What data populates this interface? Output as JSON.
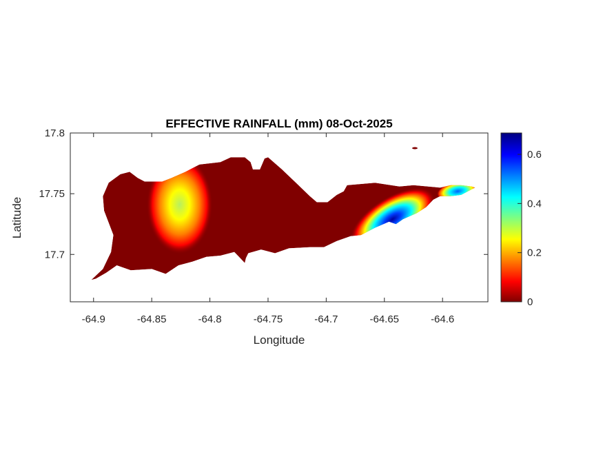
{
  "chart_data": {
    "type": "heatmap",
    "title": "EFFECTIVE RAINFALL (mm) 08-Oct-2025",
    "xlabel": "Longitude",
    "ylabel": "Latitude",
    "xlim": [
      -64.92,
      -64.561
    ],
    "ylim": [
      17.661,
      17.8
    ],
    "xticks": [
      -64.9,
      -64.85,
      -64.8,
      -64.75,
      -64.7,
      -64.65,
      -64.6
    ],
    "xtick_labels": [
      "-64.9",
      "-64.85",
      "-64.8",
      "-64.75",
      "-64.7",
      "-64.65",
      "-64.6"
    ],
    "yticks": [
      17.7,
      17.75,
      17.8
    ],
    "ytick_labels": [
      "17.7",
      "17.75",
      "17.8"
    ],
    "colorbar": {
      "range": [
        0,
        0.687
      ],
      "ticks": [
        0,
        0.2,
        0.4,
        0.6
      ],
      "tick_labels": [
        "0",
        "0.2",
        "0.4",
        "0.6"
      ],
      "colormap": "jet",
      "colors": [
        "#800000",
        "#ff0000",
        "#ffff00",
        "#00ffff",
        "#0000ff",
        "#000080"
      ]
    },
    "background_value": 0,
    "region_outline_lonlat": [
      [
        -64.902,
        17.679
      ],
      [
        -64.892,
        17.688
      ],
      [
        -64.885,
        17.702
      ],
      [
        -64.883,
        17.716
      ],
      [
        -64.891,
        17.736
      ],
      [
        -64.892,
        17.748
      ],
      [
        -64.887,
        17.759
      ],
      [
        -64.877,
        17.766
      ],
      [
        -64.869,
        17.768
      ],
      [
        -64.862,
        17.763
      ],
      [
        -64.856,
        17.76
      ],
      [
        -64.841,
        17.76
      ],
      [
        -64.833,
        17.763
      ],
      [
        -64.821,
        17.768
      ],
      [
        -64.809,
        17.774
      ],
      [
        -64.791,
        17.776
      ],
      [
        -64.782,
        17.78
      ],
      [
        -64.77,
        17.78
      ],
      [
        -64.765,
        17.776
      ],
      [
        -64.763,
        17.77
      ],
      [
        -64.757,
        17.77
      ],
      [
        -64.753,
        17.779
      ],
      [
        -64.75,
        17.78
      ],
      [
        -64.738,
        17.77
      ],
      [
        -64.726,
        17.759
      ],
      [
        -64.714,
        17.748
      ],
      [
        -64.708,
        17.743
      ],
      [
        -64.699,
        17.743
      ],
      [
        -64.691,
        17.749
      ],
      [
        -64.685,
        17.752
      ],
      [
        -64.682,
        17.757
      ],
      [
        -64.658,
        17.759
      ],
      [
        -64.637,
        17.756
      ],
      [
        -64.625,
        17.757
      ],
      [
        -64.602,
        17.755
      ],
      [
        -64.593,
        17.757
      ],
      [
        -64.584,
        17.757
      ],
      [
        -64.575,
        17.756
      ],
      [
        -64.572,
        17.755
      ],
      [
        -64.584,
        17.749
      ],
      [
        -64.593,
        17.748
      ],
      [
        -64.602,
        17.748
      ],
      [
        -64.608,
        17.745
      ],
      [
        -64.614,
        17.739
      ],
      [
        -64.622,
        17.734
      ],
      [
        -64.634,
        17.729
      ],
      [
        -64.64,
        17.725
      ],
      [
        -64.646,
        17.727
      ],
      [
        -64.658,
        17.722
      ],
      [
        -64.67,
        17.716
      ],
      [
        -64.679,
        17.715
      ],
      [
        -64.691,
        17.711
      ],
      [
        -64.702,
        17.706
      ],
      [
        -64.714,
        17.706
      ],
      [
        -64.732,
        17.705
      ],
      [
        -64.744,
        17.701
      ],
      [
        -64.756,
        17.704
      ],
      [
        -64.767,
        17.701
      ],
      [
        -64.769,
        17.697
      ],
      [
        -64.77,
        17.693
      ],
      [
        -64.776,
        17.699
      ],
      [
        -64.779,
        17.702
      ],
      [
        -64.791,
        17.699
      ],
      [
        -64.803,
        17.698
      ],
      [
        -64.815,
        17.694
      ],
      [
        -64.827,
        17.691
      ],
      [
        -64.838,
        17.684
      ],
      [
        -64.85,
        17.688
      ],
      [
        -64.868,
        17.687
      ],
      [
        -64.88,
        17.691
      ],
      [
        -64.889,
        17.685
      ],
      [
        -64.898,
        17.68
      ]
    ],
    "hotspots": [
      {
        "lon": -64.826,
        "lat": 17.741,
        "value": 0.3
      },
      {
        "lon": -64.643,
        "lat": 17.729,
        "value": 0.68
      },
      {
        "lon": -64.587,
        "lat": 17.752,
        "value": 0.55
      }
    ]
  }
}
